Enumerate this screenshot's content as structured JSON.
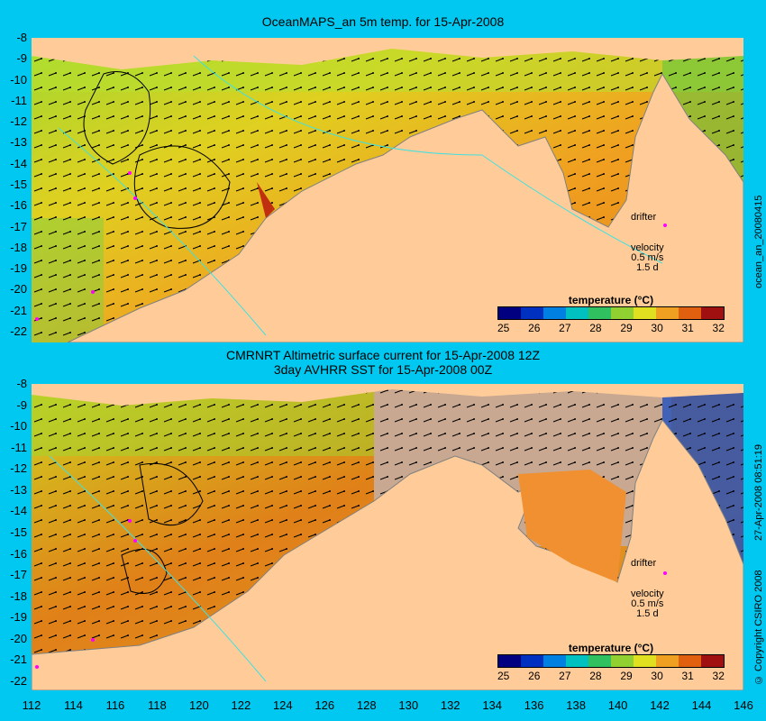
{
  "panels": [
    {
      "title_line1": "OceanMAPS_an 5m temp. for 15-Apr-2008",
      "title_line2": "",
      "side_label": "ocean_an_20080415",
      "drifter_label": "drifter",
      "velocity_label": "velocity",
      "velocity_value": "0.5 m/s",
      "velocity_days": "1.5 d",
      "legend_title": "temperature (°C)"
    },
    {
      "title_line1": "CMRNRT Altimetric surface current for 15-Apr-2008 12Z",
      "title_line2": "3day AVHRR SST for 15-Apr-2008 00Z",
      "side_label": "27-Apr-2008 08:51:19",
      "side_label2": "© Copyright CSIRO 2008",
      "drifter_label": "drifter",
      "velocity_label": "velocity",
      "velocity_value": "0.5 m/s",
      "velocity_days": "1.5 d",
      "legend_title": "temperature (°C)"
    }
  ],
  "colorbar_ticks": [
    "25",
    "26",
    "27",
    "28",
    "29",
    "30",
    "31",
    "32"
  ],
  "colorbar_colors": [
    "#000080",
    "#0030c0",
    "#0080e0",
    "#00c0c0",
    "#30c060",
    "#90d030",
    "#e0e020",
    "#f0a020",
    "#e06010",
    "#a01010"
  ],
  "y_ticks": [
    "-8",
    "-9",
    "-10",
    "-11",
    "-12",
    "-13",
    "-14",
    "-15",
    "-16",
    "-17",
    "-18",
    "-19",
    "-20",
    "-21",
    "-22"
  ],
  "x_ticks": [
    "112",
    "114",
    "116",
    "118",
    "120",
    "122",
    "124",
    "126",
    "128",
    "130",
    "132",
    "134",
    "136",
    "138",
    "140",
    "142",
    "144",
    "146"
  ],
  "colors": {
    "background": "#00c8f0",
    "land": "#ffcc99",
    "sea_warm": "#f0a020",
    "sea_mid": "#e0e020",
    "sea_cool": "#90d030",
    "drifter": "#ff00ff"
  }
}
